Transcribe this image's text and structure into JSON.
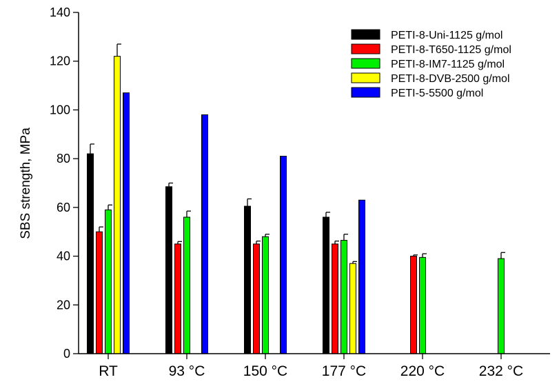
{
  "chart_data": {
    "type": "bar",
    "title": "",
    "xlabel": "",
    "ylabel": "SBS strength, MPa",
    "ylim": [
      0,
      140
    ],
    "yticks": [
      0,
      20,
      40,
      60,
      80,
      100,
      120,
      140
    ],
    "grid": false,
    "legend_position": "top-right",
    "categories": [
      "RT",
      "93 °C",
      "150 °C",
      "177 °C",
      "220 °C",
      "232 °C"
    ],
    "series": [
      {
        "name": "PETI-8-Uni-1125 g/mol",
        "color": "#000000",
        "values": [
          82,
          68.5,
          60.5,
          56,
          null,
          null
        ],
        "errors": [
          4,
          1.5,
          3,
          2,
          null,
          null
        ]
      },
      {
        "name": "PETI-8-T650-1125 g/mol",
        "color": "#ff0000",
        "values": [
          50,
          45,
          45,
          45,
          40,
          null
        ],
        "errors": [
          2,
          1,
          1.2,
          1.2,
          0.5,
          null
        ]
      },
      {
        "name": "PETI-8-IM7-1125 g/mol",
        "color": "#00ee00",
        "values": [
          59,
          56,
          48,
          46.5,
          39.5,
          39
        ],
        "errors": [
          2,
          2.5,
          1,
          2.5,
          1.5,
          2.5
        ]
      },
      {
        "name": "PETI-8-DVB-2500 g/mol",
        "color": "#ffff00",
        "values": [
          122,
          null,
          null,
          37,
          null,
          null
        ],
        "errors": [
          5,
          null,
          null,
          0.8,
          null,
          null
        ]
      },
      {
        "name": "PETI-5-5500 g/mol",
        "color": "#0000ff",
        "values": [
          107,
          98,
          81,
          63,
          null,
          null
        ],
        "errors": [
          null,
          null,
          null,
          null,
          null,
          null
        ]
      }
    ]
  }
}
